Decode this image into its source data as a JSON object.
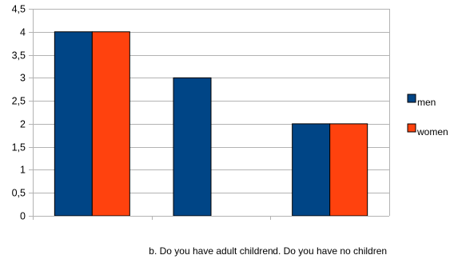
{
  "chart_data": {
    "type": "bar",
    "categories": [
      "",
      "b. Do you have adult children",
      "d. Do you have no children"
    ],
    "series": [
      {
        "name": "men",
        "values": [
          4,
          3,
          2
        ],
        "color": "#004586"
      },
      {
        "name": "women",
        "values": [
          4,
          null,
          2
        ],
        "color": "#ff420e"
      }
    ],
    "ylim": [
      0,
      4.5
    ],
    "yticks": [
      "0",
      "0,5",
      "1",
      "1,5",
      "2",
      "2,5",
      "3",
      "3,5",
      "4",
      "4,5"
    ],
    "title": "",
    "xlabel": "",
    "ylabel": "",
    "grid": true,
    "legend": "right"
  }
}
